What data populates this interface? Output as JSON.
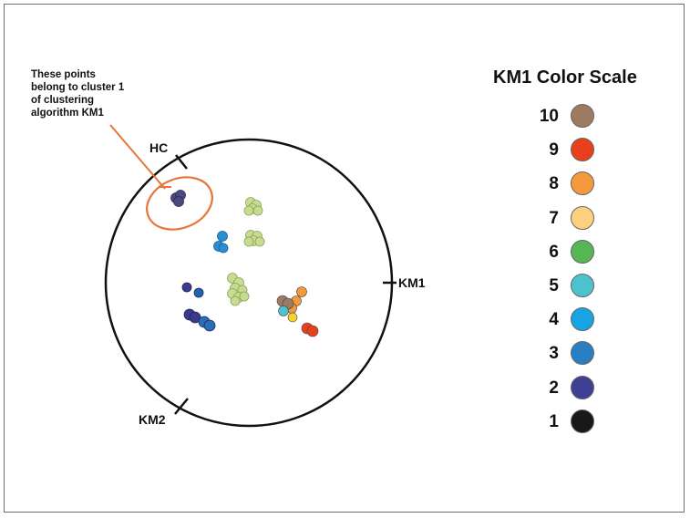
{
  "annotation": {
    "lines": [
      "These points",
      "belong to cluster 1",
      "of clustering",
      "algorithm KM1"
    ]
  },
  "axes": {
    "hc": "HC",
    "km1": "KM1",
    "km2": "KM2"
  },
  "scale": {
    "title": "KM1 Color Scale",
    "items": [
      {
        "label": "10",
        "color": "#9c7b63"
      },
      {
        "label": "9",
        "color": "#e8401c"
      },
      {
        "label": "8",
        "color": "#f49a3c"
      },
      {
        "label": "7",
        "color": "#fcd07e"
      },
      {
        "label": "6",
        "color": "#55b654"
      },
      {
        "label": "5",
        "color": "#4bc2cc"
      },
      {
        "label": "4",
        "color": "#18a3e3"
      },
      {
        "label": "3",
        "color": "#2a7fc3"
      },
      {
        "label": "2",
        "color": "#3f3f94"
      },
      {
        "label": "1",
        "color": "#181818"
      }
    ]
  },
  "colors": {
    "ring": "#111111",
    "callout": "#e8743a",
    "cluster_light_green": "#c7dc8e"
  }
}
